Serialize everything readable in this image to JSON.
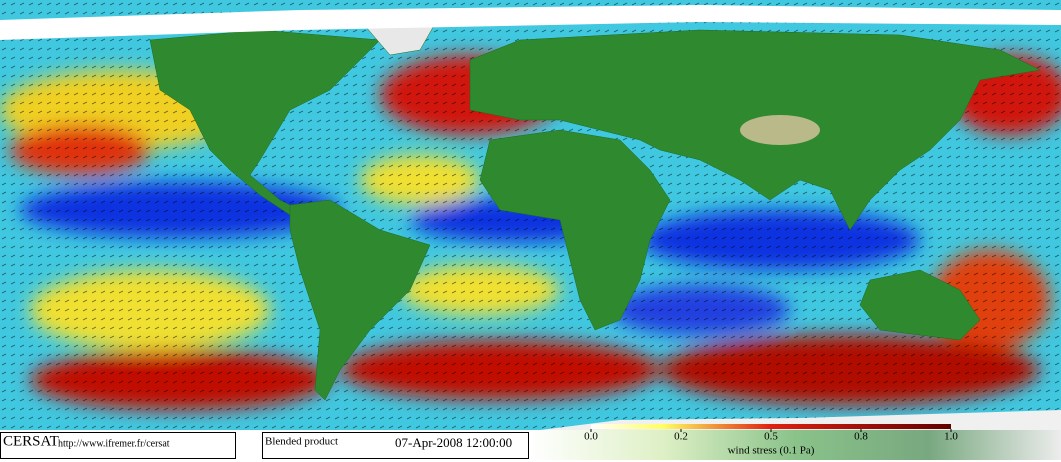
{
  "branding": {
    "org": "CERSAT",
    "url": "http://www.ifremer.fr/cersat"
  },
  "product": {
    "name": "Blended product",
    "datetime": "07-Apr-2008 12:00:00"
  },
  "colorbar": {
    "ticks": [
      {
        "value": 0,
        "label": "0.0"
      },
      0.2,
      0.5,
      0.8,
      {
        "value": 1,
        "label": "1.0"
      }
    ],
    "label": "wind stress (0.1 Pa)"
  }
}
